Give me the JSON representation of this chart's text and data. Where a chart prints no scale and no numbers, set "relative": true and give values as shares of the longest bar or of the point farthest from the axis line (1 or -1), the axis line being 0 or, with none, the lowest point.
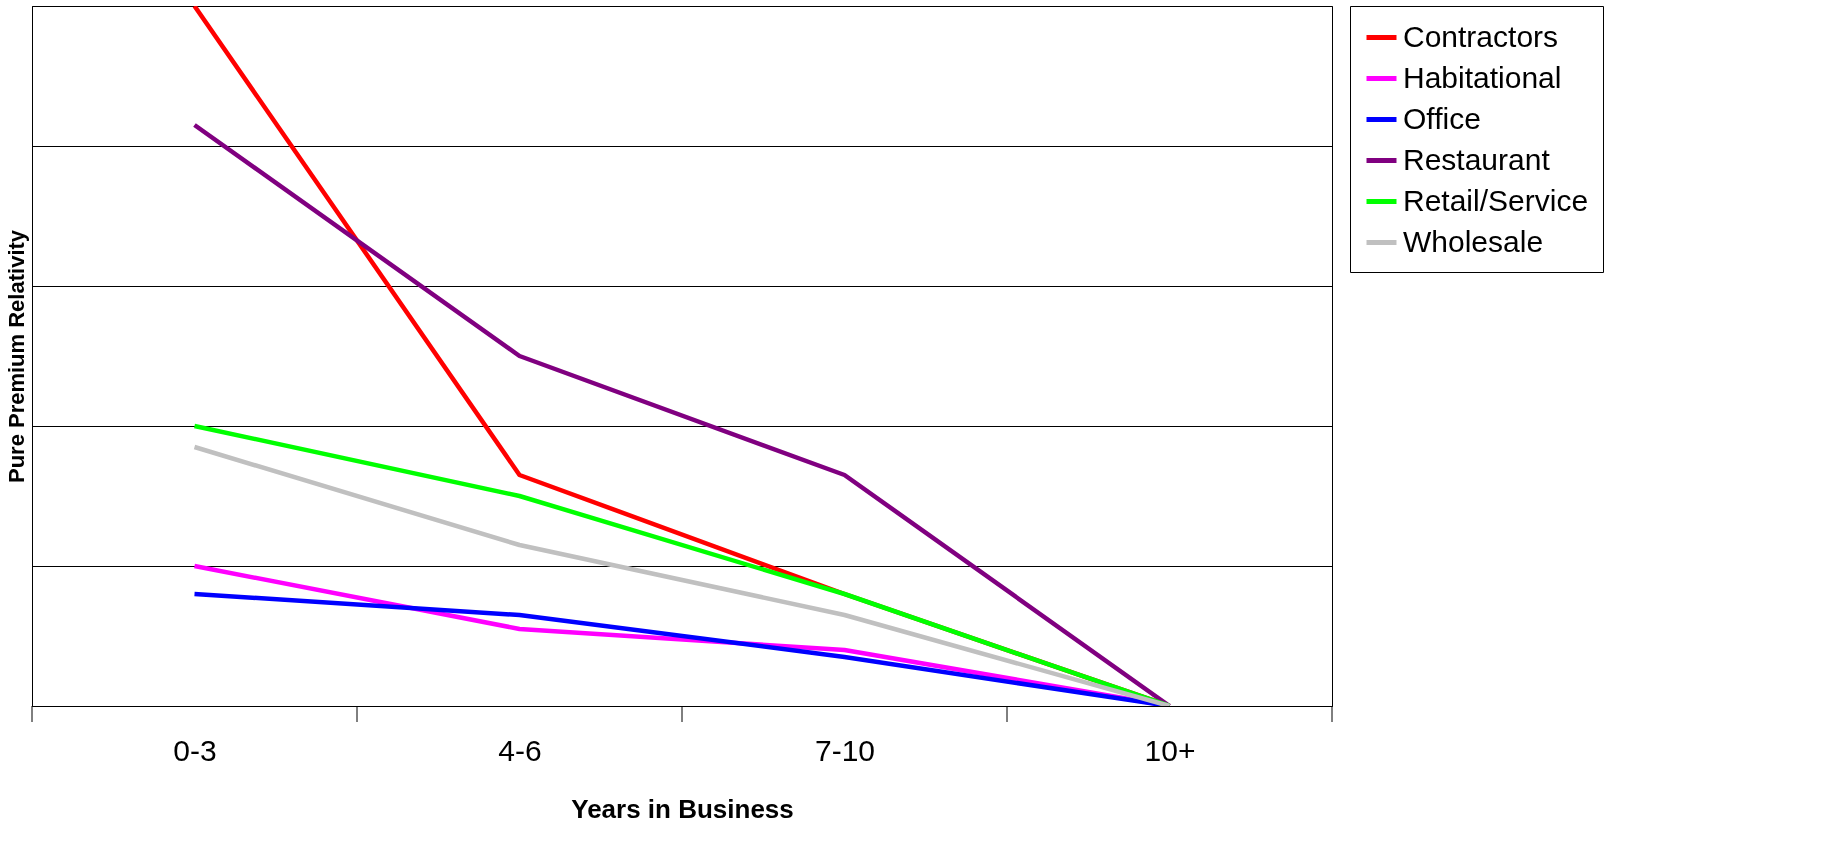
{
  "chart_data": {
    "type": "line",
    "relative": true,
    "xlabel": "Years in Business",
    "ylabel": "Pure Premium Relativity",
    "categories": [
      "0-3",
      "4-6",
      "7-10",
      "10+"
    ],
    "series": [
      {
        "name": "Contractors",
        "color": "#ff0000",
        "values": [
          1.0,
          0.33,
          0.16,
          0
        ]
      },
      {
        "name": "Habitational",
        "color": "#ff00ff",
        "values": [
          0.2,
          0.11,
          0.08,
          0
        ]
      },
      {
        "name": "Office",
        "color": "#0000ff",
        "values": [
          0.16,
          0.13,
          0.07,
          0
        ]
      },
      {
        "name": "Restaurant",
        "color": "#800080",
        "values": [
          0.83,
          0.5,
          0.33,
          0
        ]
      },
      {
        "name": "Retail/Service",
        "color": "#00ff00",
        "values": [
          0.4,
          0.3,
          0.16,
          0
        ]
      },
      {
        "name": "Wholesale",
        "color": "#c0c0c0",
        "values": [
          0.37,
          0.23,
          0.13,
          0
        ]
      }
    ],
    "grid": "y",
    "legend": "right",
    "marker": "none",
    "line_style": "solid"
  }
}
